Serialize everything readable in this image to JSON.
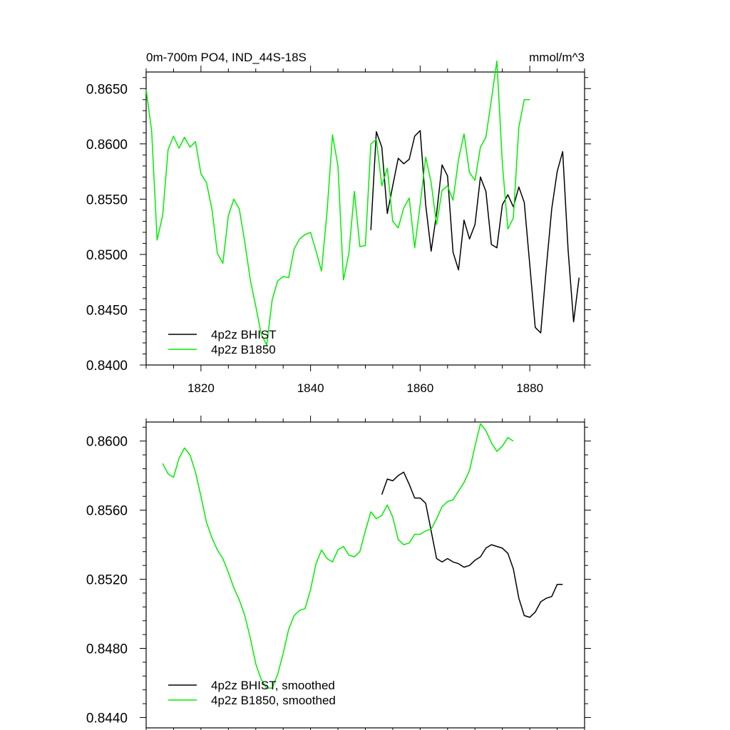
{
  "chart_data": [
    {
      "type": "line",
      "title": "0m-700m PO4, IND_44S-18S",
      "units": "mmol/m^3",
      "xlabel": "",
      "ylabel": "",
      "xlim": [
        1810,
        1890
      ],
      "ylim": [
        0.84,
        0.8665
      ],
      "x_ticks": [
        1820,
        1840,
        1860,
        1880
      ],
      "y_ticks": [
        0.84,
        0.845,
        0.85,
        0.855,
        0.86,
        0.865
      ],
      "y_tick_labels": [
        "0.8400",
        "0.8450",
        "0.8500",
        "0.8550",
        "0.8600",
        "0.8650"
      ],
      "grid": false,
      "legend_position": "bottom-left",
      "series": [
        {
          "name": "4p2z BHIST",
          "color": "#000000",
          "x": [
            1851,
            1852,
            1853,
            1854,
            1855,
            1856,
            1857,
            1858,
            1859,
            1860,
            1861,
            1862,
            1863,
            1864,
            1865,
            1866,
            1867,
            1868,
            1869,
            1870,
            1871,
            1872,
            1873,
            1874,
            1875,
            1876,
            1877,
            1878,
            1879,
            1880,
            1881,
            1882,
            1883,
            1884,
            1885,
            1886,
            1887,
            1888,
            1889
          ],
          "values": [
            0.8522,
            0.8611,
            0.8597,
            0.8537,
            0.8562,
            0.8587,
            0.8582,
            0.8586,
            0.8607,
            0.8612,
            0.8545,
            0.8503,
            0.8537,
            0.8581,
            0.8571,
            0.8502,
            0.8486,
            0.8531,
            0.8514,
            0.8527,
            0.857,
            0.8557,
            0.8509,
            0.8506,
            0.8545,
            0.8554,
            0.8543,
            0.8561,
            0.8547,
            0.8491,
            0.8434,
            0.8429,
            0.8487,
            0.8541,
            0.8575,
            0.8593,
            0.8504,
            0.8439,
            0.8479
          ]
        },
        {
          "name": "4p2z B1850",
          "color": "#00ee00",
          "x": [
            1810,
            1811,
            1812,
            1813,
            1814,
            1815,
            1816,
            1817,
            1818,
            1819,
            1820,
            1821,
            1822,
            1823,
            1824,
            1825,
            1826,
            1827,
            1828,
            1829,
            1830,
            1831,
            1832,
            1833,
            1834,
            1835,
            1836,
            1837,
            1838,
            1839,
            1840,
            1841,
            1842,
            1843,
            1844,
            1845,
            1846,
            1847,
            1848,
            1849,
            1850,
            1851,
            1852,
            1853,
            1854,
            1855,
            1856,
            1857,
            1858,
            1859,
            1860,
            1861,
            1862,
            1863,
            1864,
            1865,
            1866,
            1867,
            1868,
            1869,
            1870,
            1871,
            1872,
            1873,
            1874,
            1875,
            1876,
            1877,
            1878,
            1879,
            1880
          ],
          "values": [
            0.8649,
            0.8612,
            0.8513,
            0.8535,
            0.8595,
            0.8607,
            0.8596,
            0.8606,
            0.8597,
            0.8602,
            0.8573,
            0.8565,
            0.8541,
            0.8501,
            0.8492,
            0.8535,
            0.855,
            0.8541,
            0.8511,
            0.8477,
            0.8453,
            0.8428,
            0.8418,
            0.8459,
            0.8476,
            0.848,
            0.8479,
            0.8505,
            0.8514,
            0.8518,
            0.852,
            0.8503,
            0.8485,
            0.8538,
            0.8608,
            0.858,
            0.8477,
            0.8501,
            0.8557,
            0.8507,
            0.8508,
            0.86,
            0.8604,
            0.8562,
            0.8578,
            0.853,
            0.8524,
            0.8542,
            0.8551,
            0.8506,
            0.8545,
            0.8588,
            0.8565,
            0.8527,
            0.8558,
            0.8562,
            0.8549,
            0.8586,
            0.8609,
            0.8574,
            0.8567,
            0.8597,
            0.8606,
            0.864,
            0.8675,
            0.8582,
            0.8523,
            0.8533,
            0.8615,
            0.864,
            0.864
          ]
        }
      ]
    },
    {
      "type": "line",
      "title": "",
      "xlabel": "",
      "ylabel": "",
      "xlim": [
        1810,
        1890
      ],
      "ylim": [
        0.8434,
        0.8611
      ],
      "x_ticks": [
        1820,
        1840,
        1860,
        1880
      ],
      "y_ticks": [
        0.844,
        0.848,
        0.852,
        0.856,
        0.86
      ],
      "y_tick_labels": [
        "0.8440",
        "0.8480",
        "0.8520",
        "0.8560",
        "0.8600"
      ],
      "grid": false,
      "legend_position": "bottom-left",
      "series": [
        {
          "name": "4p2z BHIST, smoothed",
          "color": "#000000",
          "x": [
            1853,
            1854,
            1855,
            1856,
            1857,
            1858,
            1859,
            1860,
            1861,
            1862,
            1863,
            1864,
            1865,
            1866,
            1867,
            1868,
            1869,
            1870,
            1871,
            1872,
            1873,
            1874,
            1875,
            1876,
            1877,
            1878,
            1879,
            1880,
            1881,
            1882,
            1883,
            1884,
            1885,
            1886
          ],
          "values": [
            0.8569,
            0.8578,
            0.8577,
            0.858,
            0.8582,
            0.8575,
            0.8567,
            0.8567,
            0.8564,
            0.8548,
            0.8532,
            0.853,
            0.8532,
            0.853,
            0.8529,
            0.8527,
            0.8528,
            0.8531,
            0.8533,
            0.8538,
            0.854,
            0.8539,
            0.8538,
            0.8535,
            0.8526,
            0.8509,
            0.8499,
            0.8498,
            0.8501,
            0.8507,
            0.8509,
            0.851,
            0.8517,
            0.8517
          ]
        },
        {
          "name": "4p2z B1850, smoothed",
          "color": "#00ee00",
          "x": [
            1813,
            1814,
            1815,
            1816,
            1817,
            1818,
            1819,
            1820,
            1821,
            1822,
            1823,
            1824,
            1825,
            1826,
            1827,
            1828,
            1829,
            1830,
            1831,
            1832,
            1833,
            1834,
            1835,
            1836,
            1837,
            1838,
            1839,
            1840,
            1841,
            1842,
            1843,
            1844,
            1845,
            1846,
            1847,
            1848,
            1849,
            1850,
            1851,
            1852,
            1853,
            1854,
            1855,
            1856,
            1857,
            1858,
            1859,
            1860,
            1861,
            1862,
            1863,
            1864,
            1865,
            1866,
            1867,
            1868,
            1869,
            1870,
            1871,
            1872,
            1873,
            1874,
            1875,
            1876,
            1877
          ],
          "values": [
            0.8587,
            0.8581,
            0.8579,
            0.859,
            0.8596,
            0.8592,
            0.8582,
            0.8568,
            0.8553,
            0.8544,
            0.8537,
            0.8532,
            0.8524,
            0.8515,
            0.8508,
            0.8499,
            0.8486,
            0.8471,
            0.8462,
            0.8457,
            0.8457,
            0.8465,
            0.8477,
            0.8491,
            0.8499,
            0.8502,
            0.8503,
            0.8514,
            0.8529,
            0.8537,
            0.8532,
            0.853,
            0.8537,
            0.8539,
            0.8534,
            0.8533,
            0.8536,
            0.8548,
            0.8559,
            0.8555,
            0.8557,
            0.8563,
            0.8556,
            0.8543,
            0.854,
            0.8541,
            0.8546,
            0.8546,
            0.8548,
            0.8549,
            0.8555,
            0.8562,
            0.8565,
            0.8566,
            0.8571,
            0.8576,
            0.8583,
            0.8597,
            0.861,
            0.8606,
            0.8599,
            0.8594,
            0.8597,
            0.8602,
            0.86
          ]
        }
      ]
    }
  ]
}
